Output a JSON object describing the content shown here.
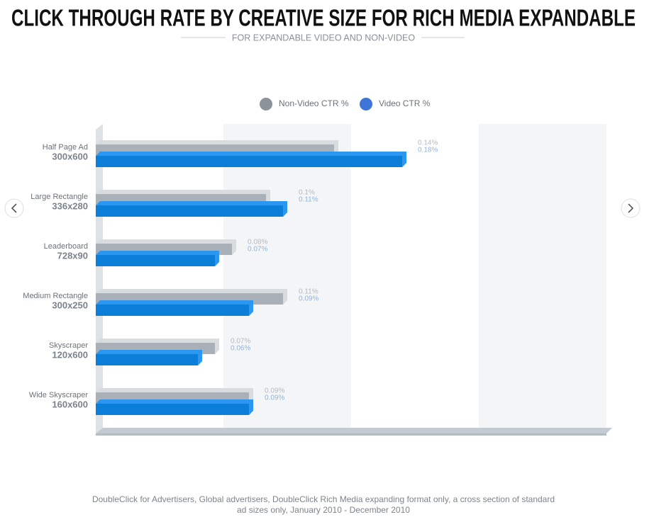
{
  "chart_data": {
    "type": "bar",
    "orientation": "horizontal",
    "title": "CLICK THROUGH RATE BY CREATIVE SIZE FOR RICH MEDIA EXPANDABLE",
    "subtitle": "FOR EXPANDABLE VIDEO AND NON-VIDEO",
    "categories": [
      "Half Page Ad",
      "Large Rectangle",
      "Leaderboard",
      "Medium Rectangle",
      "Skyscraper",
      "Wide Skyscraper"
    ],
    "category_sizes": [
      "300x600",
      "336x280",
      "728x90",
      "300x250",
      "120x600",
      "160x600"
    ],
    "series": [
      {
        "name": "Non-Video CTR %",
        "color": "#a9b0b8",
        "values": [
          0.14,
          0.1,
          0.08,
          0.11,
          0.07,
          0.09
        ],
        "value_labels": [
          "0.14%",
          "0.1%",
          "0.08%",
          "0.11%",
          "0.07%",
          "0.09%"
        ]
      },
      {
        "name": "Video CTR %",
        "color": "#0b7fd8",
        "values": [
          0.18,
          0.11,
          0.07,
          0.09,
          0.06,
          0.09
        ],
        "value_labels": [
          "0.18%",
          "0.11%",
          "0.07%",
          "0.09%",
          "0.06%",
          "0.09%"
        ]
      }
    ],
    "xlim": [
      0,
      0.3
    ],
    "source": [
      "DoubleClick for Advertisers, Global advertisers, DoubleClick Rich Media expanding format only, a cross section of standard",
      "ad sizes only, January 2010 - December 2010"
    ]
  }
}
